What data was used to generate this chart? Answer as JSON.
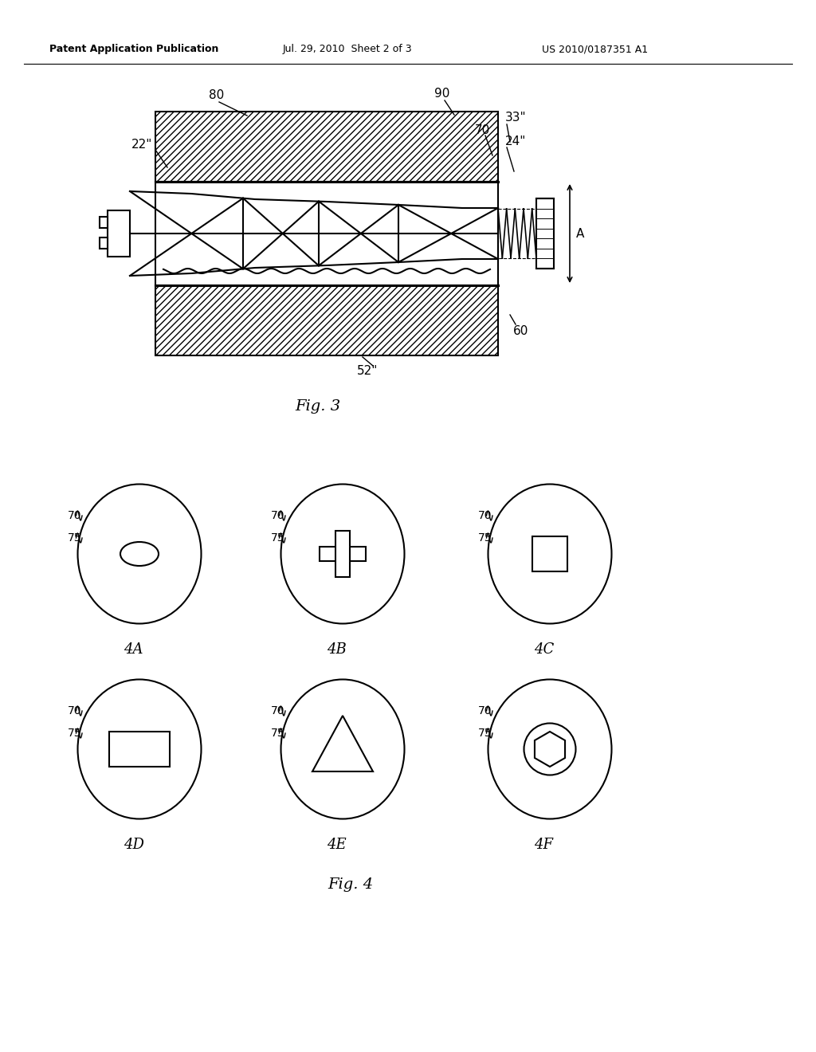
{
  "bg_color": "#ffffff",
  "line_color": "#000000",
  "fig_width": 10.24,
  "fig_height": 13.2,
  "header_text": "Patent Application Publication",
  "header_date": "Jul. 29, 2010  Sheet 2 of 3",
  "header_patent": "US 2010/0187351 A1",
  "fig3_caption": "Fig. 3",
  "fig4_caption": "Fig. 4"
}
